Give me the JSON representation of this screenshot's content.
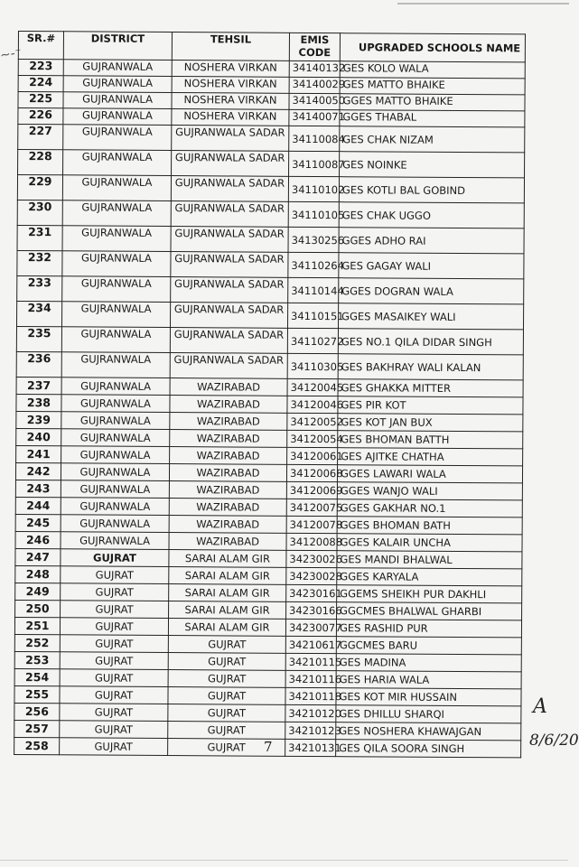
{
  "table": {
    "headers": [
      "SR.#",
      "DISTRICT",
      "TEHSIL",
      "EMIS CODE",
      "UPGRADED SCHOOLS NAME"
    ],
    "rows": [
      [
        "223",
        "GUJRANWALA",
        "NOSHERA VIRKAN",
        "34140132",
        "GES KOLO WALA"
      ],
      [
        "224",
        "GUJRANWALA",
        "NOSHERA VIRKAN",
        "34140029",
        "GES MATTO BHAIKE"
      ],
      [
        "225",
        "GUJRANWALA",
        "NOSHERA VIRKAN",
        "34140050",
        "GGES MATTO BHAIKE"
      ],
      [
        "226",
        "GUJRANWALA",
        "NOSHERA VIRKAN",
        "34140071",
        "GGES THABAL"
      ],
      [
        "227",
        "GUJRANWALA",
        "GUJRANWALA SADAR",
        "34110084",
        "GES CHAK NIZAM"
      ],
      [
        "228",
        "GUJRANWALA",
        "GUJRANWALA SADAR",
        "34110087",
        "GES NOINKE"
      ],
      [
        "229",
        "GUJRANWALA",
        "GUJRANWALA SADAR",
        "34110102",
        "GES KOTLI BAL GOBIND"
      ],
      [
        "230",
        "GUJRANWALA",
        "GUJRANWALA SADAR",
        "34110105",
        "GES CHAK UGGO"
      ],
      [
        "231",
        "GUJRANWALA",
        "GUJRANWALA SADAR",
        "34130256",
        "GGES ADHO RAI"
      ],
      [
        "232",
        "GUJRANWALA",
        "GUJRANWALA SADAR",
        "34110264",
        "GES GAGAY WALI"
      ],
      [
        "233",
        "GUJRANWALA",
        "GUJRANWALA SADAR",
        "34110144",
        "GGES DOGRAN WALA"
      ],
      [
        "234",
        "GUJRANWALA",
        "GUJRANWALA SADAR",
        "34110151",
        "GGES MASAIKEY WALI"
      ],
      [
        "235",
        "GUJRANWALA",
        "GUJRANWALA SADAR",
        "34110272",
        "GES NO.1 QILA DIDAR SINGH"
      ],
      [
        "236",
        "GUJRANWALA",
        "GUJRANWALA SADAR",
        "34110305",
        "GES BAKHRAY WALI KALAN"
      ],
      [
        "237",
        "GUJRANWALA",
        "WAZIRABAD",
        "34120045",
        "GES GHAKKA MITTER"
      ],
      [
        "238",
        "GUJRANWALA",
        "WAZIRABAD",
        "34120046",
        "GES PIR KOT"
      ],
      [
        "239",
        "GUJRANWALA",
        "WAZIRABAD",
        "34120052",
        "GES KOT JAN BUX"
      ],
      [
        "240",
        "GUJRANWALA",
        "WAZIRABAD",
        "34120054",
        "GES BHOMAN BATTH"
      ],
      [
        "241",
        "GUJRANWALA",
        "WAZIRABAD",
        "34120061",
        "GES AJITKE CHATHA"
      ],
      [
        "242",
        "GUJRANWALA",
        "WAZIRABAD",
        "34120068",
        "GGES LAWARI WALA"
      ],
      [
        "243",
        "GUJRANWALA",
        "WAZIRABAD",
        "34120069",
        "GGES WANJO WALI"
      ],
      [
        "244",
        "GUJRANWALA",
        "WAZIRABAD",
        "34120075",
        "GGES GAKHAR NO.1"
      ],
      [
        "245",
        "GUJRANWALA",
        "WAZIRABAD",
        "34120078",
        "GGES BHOMAN BATH"
      ],
      [
        "246",
        "GUJRANWALA",
        "WAZIRABAD",
        "34120088",
        "GGES KALAIR UNCHA"
      ],
      [
        "247",
        "GUJRAT",
        "SARAI ALAM GIR",
        "34230026",
        "GES MANDI BHALWAL"
      ],
      [
        "248",
        "GUJRAT",
        "SARAI ALAM GIR",
        "34230028",
        "GGES KARYALA"
      ],
      [
        "249",
        "GUJRAT",
        "SARAI ALAM GIR",
        "34230161",
        "GGEMS SHEIKH PUR DAKHLI"
      ],
      [
        "250",
        "GUJRAT",
        "SARAI ALAM GIR",
        "34230166",
        "GGCMES BHALWAL GHARBI"
      ],
      [
        "251",
        "GUJRAT",
        "SARAI ALAM GIR",
        "34230077",
        "GES RASHID PUR"
      ],
      [
        "252",
        "GUJRAT",
        "GUJRAT",
        "34210617",
        "GGCMES BARU"
      ],
      [
        "253",
        "GUJRAT",
        "GUJRAT",
        "34210115",
        "GES MADINA"
      ],
      [
        "254",
        "GUJRAT",
        "GUJRAT",
        "34210116",
        "GES HARIA WALA"
      ],
      [
        "255",
        "GUJRAT",
        "GUJRAT",
        "34210118",
        "GES KOT MIR HUSSAIN"
      ],
      [
        "256",
        "GUJRAT",
        "GUJRAT",
        "34210120",
        "GES DHILLU SHARQI"
      ],
      [
        "257",
        "GUJRAT",
        "GUJRAT",
        "34210123",
        "GES NOSHERA KHAWAJGAN"
      ],
      [
        "258",
        "GUJRAT",
        "GUJRAT",
        "34210131",
        "GES QILA SOORA SINGH"
      ]
    ]
  },
  "page_number": "7",
  "signature": {
    "initial": "A",
    "date": "8/6/20"
  }
}
